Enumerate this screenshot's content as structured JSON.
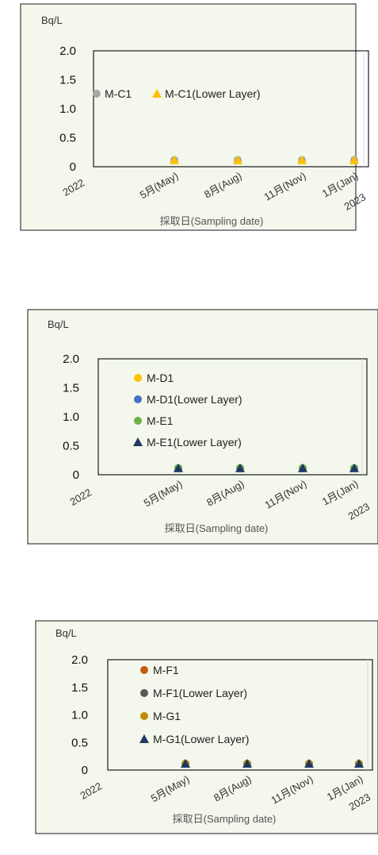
{
  "chart_data": [
    {
      "type": "scatter",
      "ylabel": "Bq/L",
      "xlabel": "採取日(Sampling date)",
      "ylim": [
        0,
        2.0
      ],
      "yticks": [
        "0",
        "0.5",
        "1.0",
        "1.5",
        "2.0"
      ],
      "year_start_label": "2022",
      "year_end_label": "2023",
      "x_tick_labels": [
        "5月(May)",
        "8月(Aug)",
        "11月(Nov)",
        "1月(Jan)"
      ],
      "legend": "inline",
      "series": [
        {
          "name": "M-C1",
          "color": "#a6a6a6",
          "marker": "circle",
          "values": [
            0.1,
            0.1,
            0.1,
            0.1
          ]
        },
        {
          "name": "M-C1(Lower Layer)",
          "color": "#ffc000",
          "marker": "triangle",
          "values": [
            0.1,
            0.1,
            0.1,
            0.1
          ]
        }
      ]
    },
    {
      "type": "scatter",
      "ylabel": "Bq/L",
      "xlabel": "採取日(Sampling date)",
      "ylim": [
        0,
        2.0
      ],
      "yticks": [
        "0",
        "0.5",
        "1.0",
        "1.5",
        "2.0"
      ],
      "year_start_label": "2022",
      "year_end_label": "2023",
      "x_tick_labels": [
        "5月(May)",
        "8月(Aug)",
        "11月(Nov)",
        "1月(Jan)"
      ],
      "legend": "top-left",
      "series": [
        {
          "name": "M-D1",
          "color": "#ffc000",
          "marker": "circle",
          "values": [
            0.1,
            0.1,
            0.1,
            0.1
          ]
        },
        {
          "name": "M-D1(Lower Layer)",
          "color": "#4472c4",
          "marker": "circle",
          "values": [
            0.1,
            0.1,
            0.1,
            0.1
          ]
        },
        {
          "name": "M-E1",
          "color": "#70ad47",
          "marker": "circle",
          "values": [
            0.1,
            0.1,
            0.1,
            0.1
          ]
        },
        {
          "name": "M-E1(Lower Layer)",
          "color": "#1f3864",
          "marker": "triangle",
          "values": [
            0.1,
            0.1,
            0.1,
            0.1
          ]
        }
      ]
    },
    {
      "type": "scatter",
      "ylabel": "Bq/L",
      "xlabel": "採取日(Sampling date)",
      "ylim": [
        0,
        2.0
      ],
      "yticks": [
        "0",
        "0.5",
        "1.0",
        "1.5",
        "2.0"
      ],
      "year_start_label": "2022",
      "year_end_label": "2023",
      "x_tick_labels": [
        "5月(May)",
        "8月(Aug)",
        "11月(Nov)",
        "1月(Jan)"
      ],
      "legend": "top-left",
      "series": [
        {
          "name": "M-F1",
          "color": "#c55a11",
          "marker": "circle",
          "values": [
            0.1,
            0.1,
            0.1,
            0.1
          ]
        },
        {
          "name": "M-F1(Lower Layer)",
          "color": "#595959",
          "marker": "circle",
          "values": [
            0.1,
            0.1,
            0.1,
            0.1
          ]
        },
        {
          "name": "M-G1",
          "color": "#bf8f00",
          "marker": "circle",
          "values": [
            0.1,
            0.1,
            0.1,
            0.1
          ]
        },
        {
          "name": "M-G1(Lower Layer)",
          "color": "#1f3864",
          "marker": "triangle",
          "values": [
            0.1,
            0.1,
            0.1,
            0.1
          ]
        }
      ]
    }
  ]
}
